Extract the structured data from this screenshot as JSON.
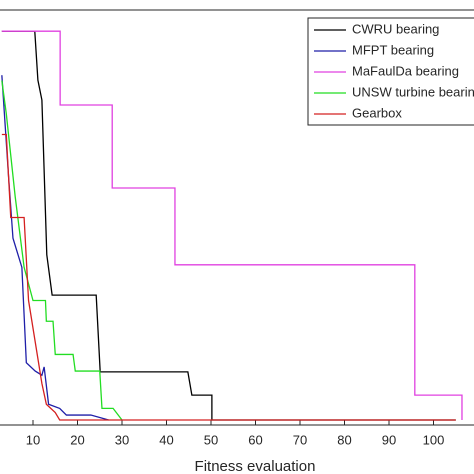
{
  "chart_data": {
    "type": "line",
    "x_label": "Fitness evaluation",
    "xlim": [
      0,
      110
    ],
    "ylim": [
      0,
      1
    ],
    "xticks": [
      10,
      20,
      30,
      40,
      50,
      60,
      70,
      80,
      90,
      100
    ],
    "legend": "upper right",
    "series": [
      {
        "name": "CWRU bearing",
        "color": "#000000",
        "x": [
          3,
          10.4,
          11.1,
          12,
          13.1,
          14.3,
          24.2,
          25.1,
          44.8,
          45.7,
          50.2,
          50.2,
          105
        ],
        "values": [
          0.949,
          0.949,
          0.831,
          0.783,
          0.41,
          0.313,
          0.313,
          0.128,
          0.128,
          0.072,
          0.072,
          0.012,
          0.012
        ]
      },
      {
        "name": "MFPT bearing",
        "color": "#1f1fa8",
        "x": [
          3,
          4.5,
          5.5,
          7.5,
          8.5,
          10.5,
          12,
          12.5,
          13.5,
          16,
          17.5,
          23,
          27
        ],
        "values": [
          0.843,
          0.6,
          0.45,
          0.38,
          0.15,
          0.13,
          0.12,
          0.14,
          0.05,
          0.04,
          0.024,
          0.024,
          0.012
        ]
      },
      {
        "name": "MaFaulDa bearing",
        "color": "#e040e0",
        "x": [
          3,
          16.1,
          16.1,
          27.8,
          27.8,
          41.9,
          41.9,
          95.8,
          95.8,
          106.4,
          106.4
        ],
        "values": [
          0.949,
          0.949,
          0.771,
          0.771,
          0.571,
          0.571,
          0.386,
          0.386,
          0.072,
          0.072,
          0.012
        ]
      },
      {
        "name": "UNSW turbine bearing",
        "color": "#22dd22",
        "x": [
          3,
          4,
          5,
          6,
          8,
          10,
          12.8,
          13,
          14.5,
          15,
          19,
          19.5,
          25,
          25.5,
          28,
          30
        ],
        "values": [
          0.83,
          0.75,
          0.65,
          0.55,
          0.38,
          0.3,
          0.3,
          0.25,
          0.25,
          0.17,
          0.17,
          0.13,
          0.13,
          0.04,
          0.04,
          0.012
        ]
      },
      {
        "name": "Gearbox",
        "color": "#d42020",
        "x": [
          3,
          4,
          5,
          8,
          9,
          10.5,
          12,
          13,
          15,
          16,
          105
        ],
        "values": [
          0.7,
          0.7,
          0.5,
          0.5,
          0.3,
          0.2,
          0.1,
          0.05,
          0.03,
          0.012,
          0.012
        ]
      }
    ]
  }
}
